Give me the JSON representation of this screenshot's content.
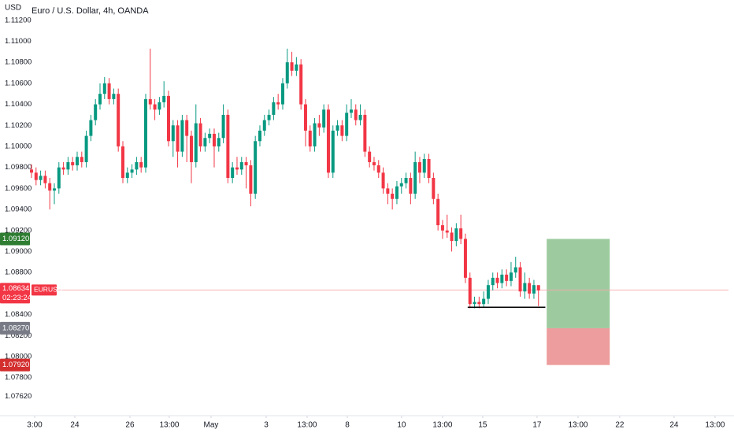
{
  "chart_data": {
    "type": "candlestick",
    "title": "Euro / U.S. Dollar, 4h, OANDA",
    "currency": "USD",
    "symbol": "EURUSD",
    "countdown": "02:23:24",
    "last_price": 1.08634,
    "up_color": "#089981",
    "down_color": "#f23645",
    "grid": false,
    "xlim": [
      0,
      152.6
    ],
    "ylim": [
      1.07498,
      1.11243
    ],
    "yticks": [
      {
        "value": 1.112,
        "label": "1.11200"
      },
      {
        "value": 1.11,
        "label": "1.11000"
      },
      {
        "value": 1.108,
        "label": "1.10800"
      },
      {
        "value": 1.106,
        "label": "1.10600"
      },
      {
        "value": 1.104,
        "label": "1.10400"
      },
      {
        "value": 1.102,
        "label": "1.10200"
      },
      {
        "value": 1.1,
        "label": "1.10000"
      },
      {
        "value": 1.098,
        "label": "1.09800"
      },
      {
        "value": 1.096,
        "label": "1.09600"
      },
      {
        "value": 1.094,
        "label": "1.09400"
      },
      {
        "value": 1.092,
        "label": "1.09200"
      },
      {
        "value": 1.09,
        "label": "1.09000"
      },
      {
        "value": 1.088,
        "label": "1.08800"
      },
      {
        "value": 1.084,
        "label": "1.08400"
      },
      {
        "value": 1.082,
        "label": "1.08200"
      },
      {
        "value": 1.08,
        "label": "1.08000"
      },
      {
        "value": 1.078,
        "label": "1.07800"
      },
      {
        "value": 1.0762,
        "label": "1.07620"
      }
    ],
    "xticks": [
      {
        "value": 0.69,
        "label": "3:00"
      },
      {
        "value": 9.48,
        "label": "24"
      },
      {
        "value": 21.55,
        "label": "26"
      },
      {
        "value": 30.17,
        "label": "13:00"
      },
      {
        "value": 39.31,
        "label": "May"
      },
      {
        "value": 51.38,
        "label": "3"
      },
      {
        "value": 60.34,
        "label": "13:00"
      },
      {
        "value": 69.14,
        "label": "8"
      },
      {
        "value": 81.03,
        "label": "10"
      },
      {
        "value": 90,
        "label": "13:00"
      },
      {
        "value": 98.79,
        "label": "15"
      },
      {
        "value": 110.69,
        "label": "17"
      },
      {
        "value": 119.66,
        "label": "13:00"
      },
      {
        "value": 128.79,
        "label": "22"
      },
      {
        "value": 140.69,
        "label": "24"
      },
      {
        "value": 149.66,
        "label": "13:00"
      }
    ],
    "position": {
      "from": 112.8,
      "to": 126.6,
      "target": {
        "value": 1.0912,
        "label": "1.09120"
      },
      "entry": {
        "value": 1.0827,
        "label": "1.08270"
      },
      "stop": {
        "value": 1.0792,
        "label": "1.07920"
      }
    },
    "support": {
      "value": 1.0847,
      "from": 95.5,
      "to": 112.5
    },
    "open": [
      1.0978,
      1.0975,
      1.0968,
      1.0972,
      1.0965,
      1.0958,
      1.096,
      1.098,
      1.0978,
      1.0985,
      1.0982,
      1.099,
      1.0985,
      1.101,
      1.1025,
      1.104,
      1.105,
      1.106,
      1.1045,
      1.105,
      1.1,
      1.097,
      1.0975,
      1.0978,
      1.0985,
      1.098,
      1.1045,
      1.104,
      1.1035,
      1.1042,
      1.1048,
      1.1005,
      1.102,
      1.0995,
      1.1025,
      1.101,
      1.0985,
      1.1022,
      1.1,
      1.1008,
      1.1012,
      1.1,
      1.1008,
      1.103,
      1.097,
      1.098,
      1.0978,
      1.0985,
      1.0982,
      1.0955,
      1.1005,
      1.1015,
      1.1025,
      1.103,
      1.1042,
      1.104,
      1.106,
      1.108,
      1.1072,
      1.1078,
      1.104,
      1.1015,
      1.1,
      1.1022,
      1.1018,
      1.1035,
      1.0975,
      1.1015,
      1.102,
      1.101,
      1.1032,
      1.1035,
      1.1025,
      1.103,
      1.0995,
      1.0985,
      1.0982,
      1.0975,
      1.096,
      1.0955,
      1.095,
      1.0962,
      1.0965,
      1.097,
      1.0955,
      1.0985,
      1.0975,
      1.0988,
      1.097,
      1.095,
      1.0925,
      1.092,
      1.0918,
      1.091,
      1.0922,
      1.0912,
      1.0875,
      1.085,
      1.0852,
      1.085,
      1.0855,
      1.0868,
      1.0875,
      1.087,
      1.0878,
      1.0872,
      1.088,
      1.0885,
      1.0862,
      1.087,
      1.086,
      1.0868
    ],
    "high": [
      1.0983,
      1.098,
      1.0977,
      1.0977,
      1.097,
      1.0965,
      1.0985,
      1.0985,
      1.099,
      1.099,
      1.0995,
      1.0995,
      1.1015,
      1.103,
      1.1045,
      1.106,
      1.1066,
      1.1065,
      1.1055,
      1.1055,
      1.1005,
      1.098,
      1.0983,
      1.099,
      1.099,
      1.105,
      1.1093,
      1.1045,
      1.1047,
      1.1062,
      1.1053,
      1.1025,
      1.1025,
      1.103,
      1.103,
      1.1015,
      1.104,
      1.1027,
      1.1013,
      1.1017,
      1.1017,
      1.1013,
      1.104,
      1.1035,
      1.0985,
      1.099,
      1.099,
      1.099,
      1.0987,
      1.101,
      1.102,
      1.103,
      1.1035,
      1.1047,
      1.105,
      1.1065,
      1.1093,
      1.109,
      1.1085,
      1.1083,
      1.1045,
      1.102,
      1.1027,
      1.103,
      1.104,
      1.104,
      1.102,
      1.1025,
      1.1025,
      1.104,
      1.1045,
      1.104,
      1.104,
      1.1035,
      1.1,
      1.099,
      1.0987,
      1.098,
      1.0965,
      1.096,
      1.0967,
      1.097,
      1.0975,
      1.0975,
      1.0995,
      1.099,
      1.0993,
      1.0993,
      1.0975,
      1.0955,
      1.093,
      1.0935,
      1.0923,
      1.0927,
      1.0935,
      1.0917,
      1.088,
      1.0857,
      1.0857,
      1.0862,
      1.0873,
      1.088,
      1.088,
      1.0883,
      1.0883,
      1.089,
      1.0895,
      1.089,
      1.088,
      1.0875,
      1.0873,
      1.0866
    ],
    "low": [
      1.097,
      1.0963,
      1.0963,
      1.096,
      1.094,
      1.0945,
      1.0955,
      1.0973,
      1.0973,
      1.0977,
      1.0977,
      1.098,
      1.098,
      1.1005,
      1.102,
      1.1035,
      1.1045,
      1.104,
      1.104,
      1.0995,
      1.0965,
      1.0965,
      1.097,
      1.0973,
      1.0975,
      1.0975,
      1.1035,
      1.1025,
      1.103,
      1.1037,
      1.1,
      1.099,
      1.098,
      1.099,
      1.0985,
      1.0965,
      1.098,
      1.0995,
      1.0995,
      1.1003,
      1.098,
      1.0995,
      1.1003,
      1.0965,
      1.0965,
      1.0973,
      1.0973,
      1.096,
      1.0943,
      1.095,
      1.1,
      1.101,
      1.102,
      1.1025,
      1.1035,
      1.1035,
      1.1055,
      1.1067,
      1.1067,
      1.1035,
      1.1,
      1.0995,
      1.0995,
      1.101,
      1.1013,
      1.097,
      1.097,
      1.101,
      1.1005,
      1.1005,
      1.1027,
      1.102,
      1.102,
      1.099,
      1.098,
      1.0977,
      1.097,
      1.0955,
      1.0945,
      1.094,
      1.0945,
      1.0955,
      1.096,
      1.0945,
      1.095,
      1.0965,
      1.097,
      1.0965,
      1.0945,
      1.092,
      1.0912,
      1.0913,
      1.09,
      1.0905,
      1.0907,
      1.087,
      1.0846,
      1.0846,
      1.0846,
      1.0847,
      1.085,
      1.0863,
      1.0865,
      1.0865,
      1.0867,
      1.0867,
      1.0875,
      1.0857,
      1.0855,
      1.0855,
      1.0855,
      1.0848
    ],
    "close": [
      1.0975,
      1.0968,
      1.0972,
      1.0965,
      1.0958,
      1.096,
      1.098,
      1.0978,
      1.0985,
      1.0982,
      1.099,
      1.0985,
      1.101,
      1.1025,
      1.104,
      1.105,
      1.106,
      1.1045,
      1.105,
      1.1,
      1.097,
      1.0975,
      1.0978,
      1.0985,
      1.098,
      1.1045,
      1.104,
      1.1035,
      1.1042,
      1.1048,
      1.1005,
      1.102,
      1.0995,
      1.1025,
      1.101,
      1.0985,
      1.1022,
      1.1,
      1.1008,
      1.1012,
      1.1,
      1.1008,
      1.103,
      1.097,
      1.098,
      1.0978,
      1.0985,
      1.0982,
      1.0955,
      1.1005,
      1.1015,
      1.1025,
      1.103,
      1.1042,
      1.104,
      1.106,
      1.108,
      1.1072,
      1.1078,
      1.104,
      1.1015,
      1.1,
      1.1022,
      1.1018,
      1.1035,
      1.0975,
      1.1015,
      1.102,
      1.101,
      1.1032,
      1.1035,
      1.1025,
      1.103,
      1.0995,
      1.0985,
      1.0982,
      1.0975,
      1.096,
      1.0955,
      1.095,
      1.0962,
      1.0965,
      1.097,
      1.0955,
      1.0985,
      1.0975,
      1.0988,
      1.097,
      1.095,
      1.0925,
      1.092,
      1.0918,
      1.091,
      1.0922,
      1.0912,
      1.0875,
      1.085,
      1.0852,
      1.085,
      1.0855,
      1.0868,
      1.0875,
      1.087,
      1.0878,
      1.0872,
      1.088,
      1.0885,
      1.0862,
      1.087,
      1.086,
      1.0868,
      1.0863
    ]
  }
}
